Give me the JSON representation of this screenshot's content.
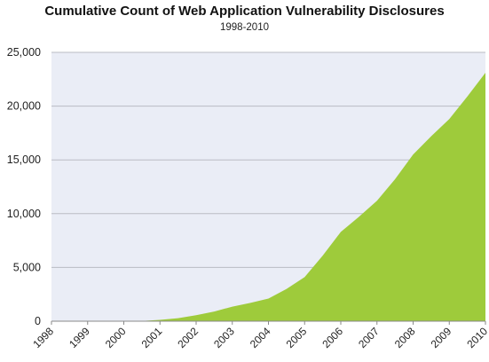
{
  "colors": {
    "plot_background": "#eaedf6",
    "area_fill": "#9ecb3b",
    "gridline": "#b9bcc3",
    "axis": "#8a8a8a",
    "text": "#222222"
  },
  "chart_data": {
    "type": "area",
    "title": "Cumulative Count of Web Application Vulnerability Disclosures",
    "subtitle": "1998-2010",
    "xlabel": "",
    "ylabel": "",
    "x_ticks": [
      "1998",
      "1999",
      "2000",
      "2001",
      "2002",
      "2003",
      "2004",
      "2005",
      "2006",
      "2007",
      "2008",
      "2009",
      "2010"
    ],
    "y_ticks": [
      "0",
      "5,000",
      "10,000",
      "15,000",
      "20,000",
      "25,000"
    ],
    "ylim": [
      0,
      25000
    ],
    "xlim": [
      1998,
      2010
    ],
    "grid": "horizontal",
    "legend": "none",
    "series": [
      {
        "x": [
          1998,
          1999,
          2000,
          2000.5,
          2001,
          2001.5,
          2002,
          2002.5,
          2003,
          2003.5,
          2004,
          2004.5,
          2005,
          2005.5,
          2006,
          2006.5,
          2007,
          2007.5,
          2008,
          2008.5,
          2009,
          2009.5,
          2010
        ],
        "y": [
          0,
          0,
          0,
          20,
          120,
          280,
          550,
          900,
          1350,
          1700,
          2100,
          3000,
          4100,
          6100,
          8300,
          9700,
          11200,
          13200,
          15500,
          17200,
          18800,
          20900,
          23100
        ]
      }
    ]
  }
}
